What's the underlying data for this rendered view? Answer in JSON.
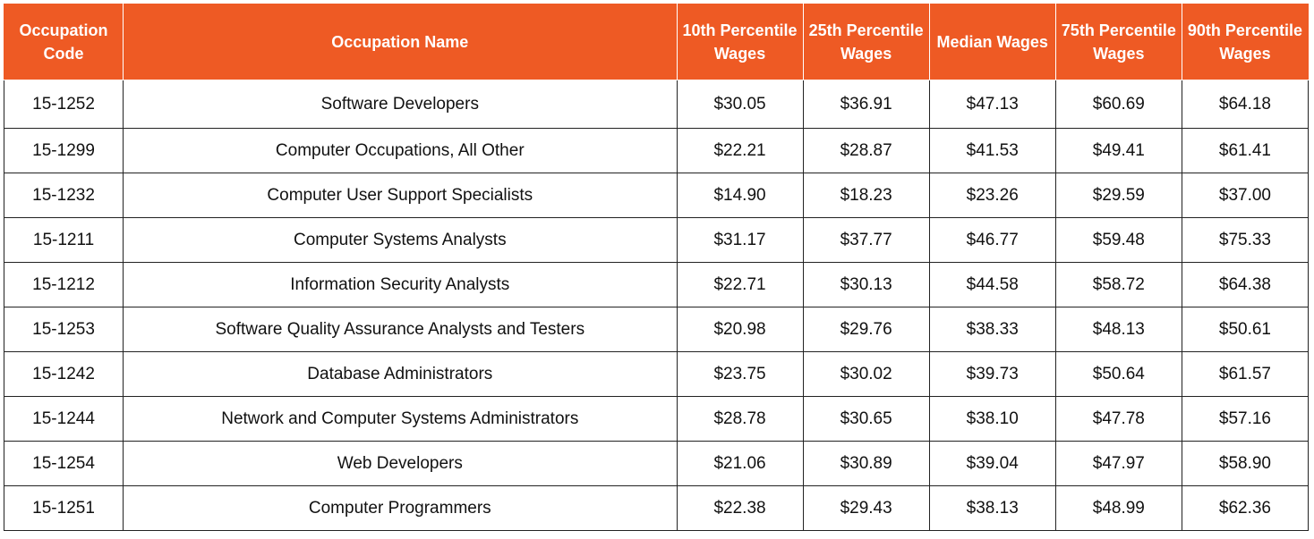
{
  "table": {
    "headers": {
      "code": "Occupation Code",
      "name": "Occupation Name",
      "p10": "10th Percentile Wages",
      "p25": "25th Percentile Wages",
      "median": "Median Wages",
      "p75": "75th Percentile Wages",
      "p90": "90th Percentile Wages"
    },
    "header_color": "#ee5a24",
    "rows": [
      {
        "code": "15-1252",
        "name": "Software Developers",
        "p10": "$30.05",
        "p25": "$36.91",
        "median": "$47.13",
        "p75": "$60.69",
        "p90": "$64.18"
      },
      {
        "code": "15-1299",
        "name": "Computer Occupations, All Other",
        "p10": "$22.21",
        "p25": "$28.87",
        "median": "$41.53",
        "p75": "$49.41",
        "p90": "$61.41"
      },
      {
        "code": "15-1232",
        "name": "Computer User Support Specialists",
        "p10": "$14.90",
        "p25": "$18.23",
        "median": "$23.26",
        "p75": "$29.59",
        "p90": "$37.00"
      },
      {
        "code": "15-1211",
        "name": "Computer Systems Analysts",
        "p10": "$31.17",
        "p25": "$37.77",
        "median": "$46.77",
        "p75": "$59.48",
        "p90": "$75.33"
      },
      {
        "code": "15-1212",
        "name": "Information Security Analysts",
        "p10": "$22.71",
        "p25": "$30.13",
        "median": "$44.58",
        "p75": "$58.72",
        "p90": "$64.38"
      },
      {
        "code": "15-1253",
        "name": "Software Quality Assurance Analysts and Testers",
        "p10": "$20.98",
        "p25": "$29.76",
        "median": "$38.33",
        "p75": "$48.13",
        "p90": "$50.61"
      },
      {
        "code": "15-1242",
        "name": "Database Administrators",
        "p10": "$23.75",
        "p25": "$30.02",
        "median": "$39.73",
        "p75": "$50.64",
        "p90": "$61.57"
      },
      {
        "code": "15-1244",
        "name": "Network and Computer Systems Administrators",
        "p10": "$28.78",
        "p25": "$30.65",
        "median": "$38.10",
        "p75": "$47.78",
        "p90": "$57.16"
      },
      {
        "code": "15-1254",
        "name": "Web Developers",
        "p10": "$21.06",
        "p25": "$30.89",
        "median": "$39.04",
        "p75": "$47.97",
        "p90": "$58.90"
      },
      {
        "code": "15-1251",
        "name": "Computer Programmers",
        "p10": "$22.38",
        "p25": "$29.43",
        "median": "$38.13",
        "p75": "$48.99",
        "p90": "$62.36"
      }
    ]
  }
}
